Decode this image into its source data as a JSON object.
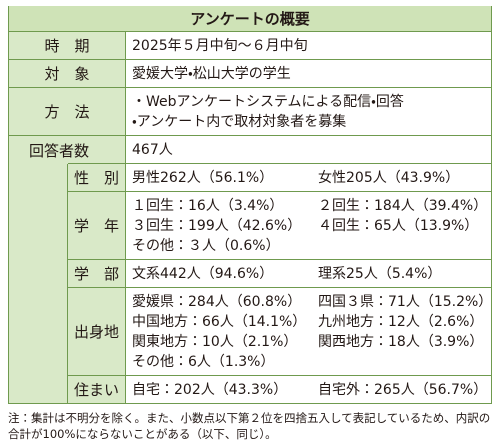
{
  "header": {
    "title": "アンケートの概要"
  },
  "table": {
    "rows": [
      {
        "label": "時　期",
        "lines": [
          [
            "2025年５月中旬～６月中旬"
          ]
        ]
      },
      {
        "label": "対　象",
        "lines": [
          [
            "愛媛大学・松山大学の学生"
          ]
        ]
      },
      {
        "label": "方　法",
        "lines": [
          [
            "・Webアンケートシステムによる配信・回答"
          ],
          [
            "・アンケート内で取材対象者を募集"
          ]
        ]
      },
      {
        "label": "回答者数",
        "lines": [
          [
            "467人"
          ]
        ],
        "sub_rows": [
          {
            "label": "性　別",
            "lines": [
              [
                "男性262人（56.1%）",
                "女性205人（43.9%）"
              ]
            ]
          },
          {
            "label": "学　年",
            "lines": [
              [
                "１回生：16人（3.4%）",
                "２回生：184人（39.4%）"
              ],
              [
                "３回生：199人（42.6%）",
                "４回生：65人（13.9%）"
              ],
              [
                "その他：３人（0.6%）"
              ]
            ]
          },
          {
            "label": "学　部",
            "lines": [
              [
                "文系442人（94.6%）",
                "理系25人（5.4%）"
              ]
            ]
          },
          {
            "label": "出身地",
            "lines": [
              [
                "愛媛県：284人（60.8%）",
                "四国３県：71人（15.2%）"
              ],
              [
                "中国地方：66人（14.1%）",
                "九州地方：12人（2.6%）"
              ],
              [
                "関東地方：10人（2.1%）",
                "関西地方：18人（3.9%）"
              ],
              [
                "その他：6人（1.3%）"
              ]
            ]
          },
          {
            "label": "住まい",
            "lines": [
              [
                "自宅：202人（43.3%）",
                "自宅外：265人（56.7%）"
              ]
            ]
          }
        ]
      }
    ]
  },
  "footnote": "注：集計は不明分を除く。また、小数点以下第２位を四捨五入して表記しているため、内訳の合計が100%にならないことがある（以下、同じ）。"
}
